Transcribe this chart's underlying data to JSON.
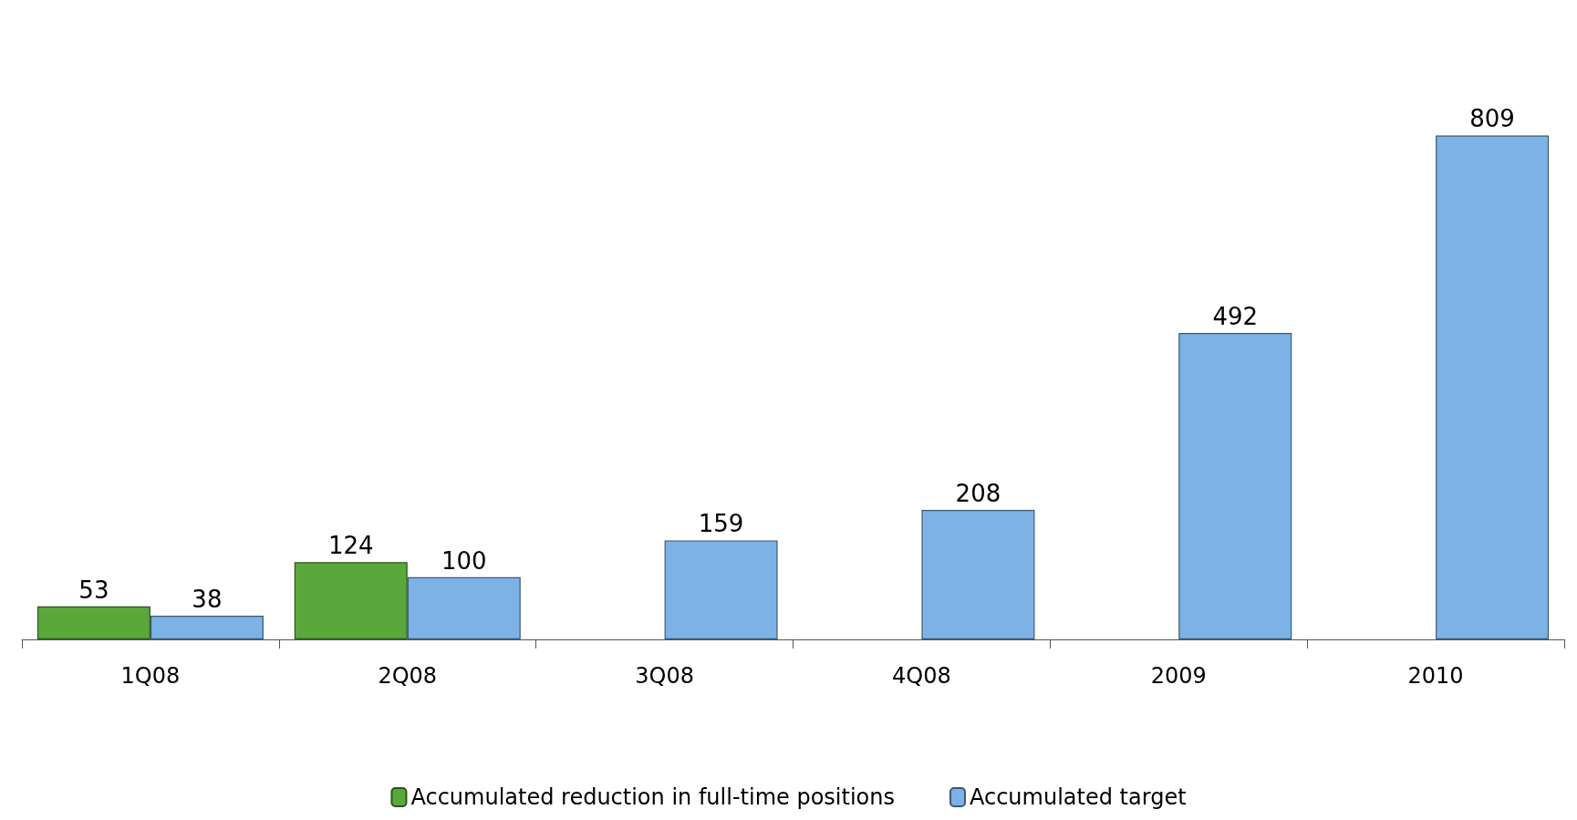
{
  "chart_data": {
    "type": "bar",
    "categories": [
      "1Q08",
      "2Q08",
      "3Q08",
      "4Q08",
      "2009",
      "2010"
    ],
    "series": [
      {
        "name": "Accumulated reduction in full-time positions",
        "color": "#5aa83c",
        "values": [
          53,
          124,
          null,
          null,
          null,
          null
        ]
      },
      {
        "name": "Accumulated target",
        "color": "#7db2e6",
        "values": [
          38,
          100,
          159,
          208,
          492,
          809
        ]
      }
    ],
    "data_labels": true,
    "legend": "bottom"
  }
}
